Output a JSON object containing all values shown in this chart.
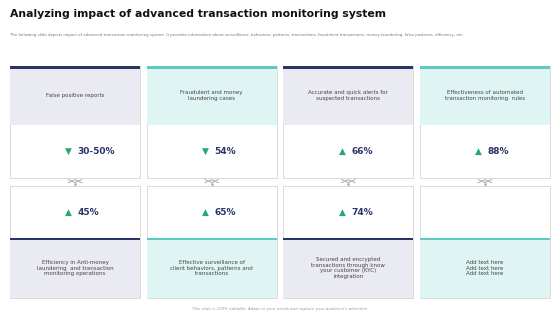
{
  "title": "Analyzing impact of advanced transaction monitoring system",
  "subtitle": "The following slide depicts impact of advanced transaction monitoring system. It provides information about surveillance, behaviors, patterns, transactions, fraudulent transactions, money laundering, false positives, efficiency, etc.",
  "footer": "This slide is 100% editable. Adapt to your needs and capture your audience's attention",
  "bg_color": "#ffffff",
  "top_cards": [
    {
      "label": "False positive reports",
      "value": "30-50%",
      "arrow": "down",
      "header_color": "#2b3467",
      "body_color": "#eaeaf2"
    },
    {
      "label": "Fraudulent and money\nlaundering cases",
      "value": "54%",
      "arrow": "down",
      "header_color": "#5ec8c5",
      "body_color": "#dff5f4"
    },
    {
      "label": "Accurate and quick alerts for\nsuspected transactions",
      "value": "66%",
      "arrow": "up",
      "header_color": "#2b3467",
      "body_color": "#eaeaf2"
    },
    {
      "label": "Effectiveness of automated\ntransaction monitoring  rules",
      "value": "88%",
      "arrow": "up",
      "header_color": "#5ec8c5",
      "body_color": "#dff5f4"
    }
  ],
  "bottom_cards": [
    {
      "label": "Efficiency in Anti-money\nlaundering  and transaction\nmonitoring operations",
      "value": "45%",
      "arrow": "up",
      "header_color": "#2b3467",
      "body_color": "#eaeaf2"
    },
    {
      "label": "Effective surveillance of\nclient behaviors, patterns and\ntransactions",
      "value": "65%",
      "arrow": "up",
      "header_color": "#5ec8c5",
      "body_color": "#dff5f4"
    },
    {
      "label": "Secured and encrypted\ntransactions through know\nyour customer (KYC)\nintegration",
      "value": "74%",
      "arrow": "up",
      "header_color": "#2b3467",
      "body_color": "#eaeaf2"
    },
    {
      "label": "Add text here\nAdd text here\nAdd text here",
      "value": "",
      "arrow": "none",
      "header_color": "#5ec8c5",
      "body_color": "#dff5f4"
    }
  ],
  "arrow_up_color": "#27a96c",
  "arrow_down_color": "#27a96c",
  "value_color": "#2b3467",
  "label_color": "#555555",
  "connector_color": "#b0b0b0"
}
